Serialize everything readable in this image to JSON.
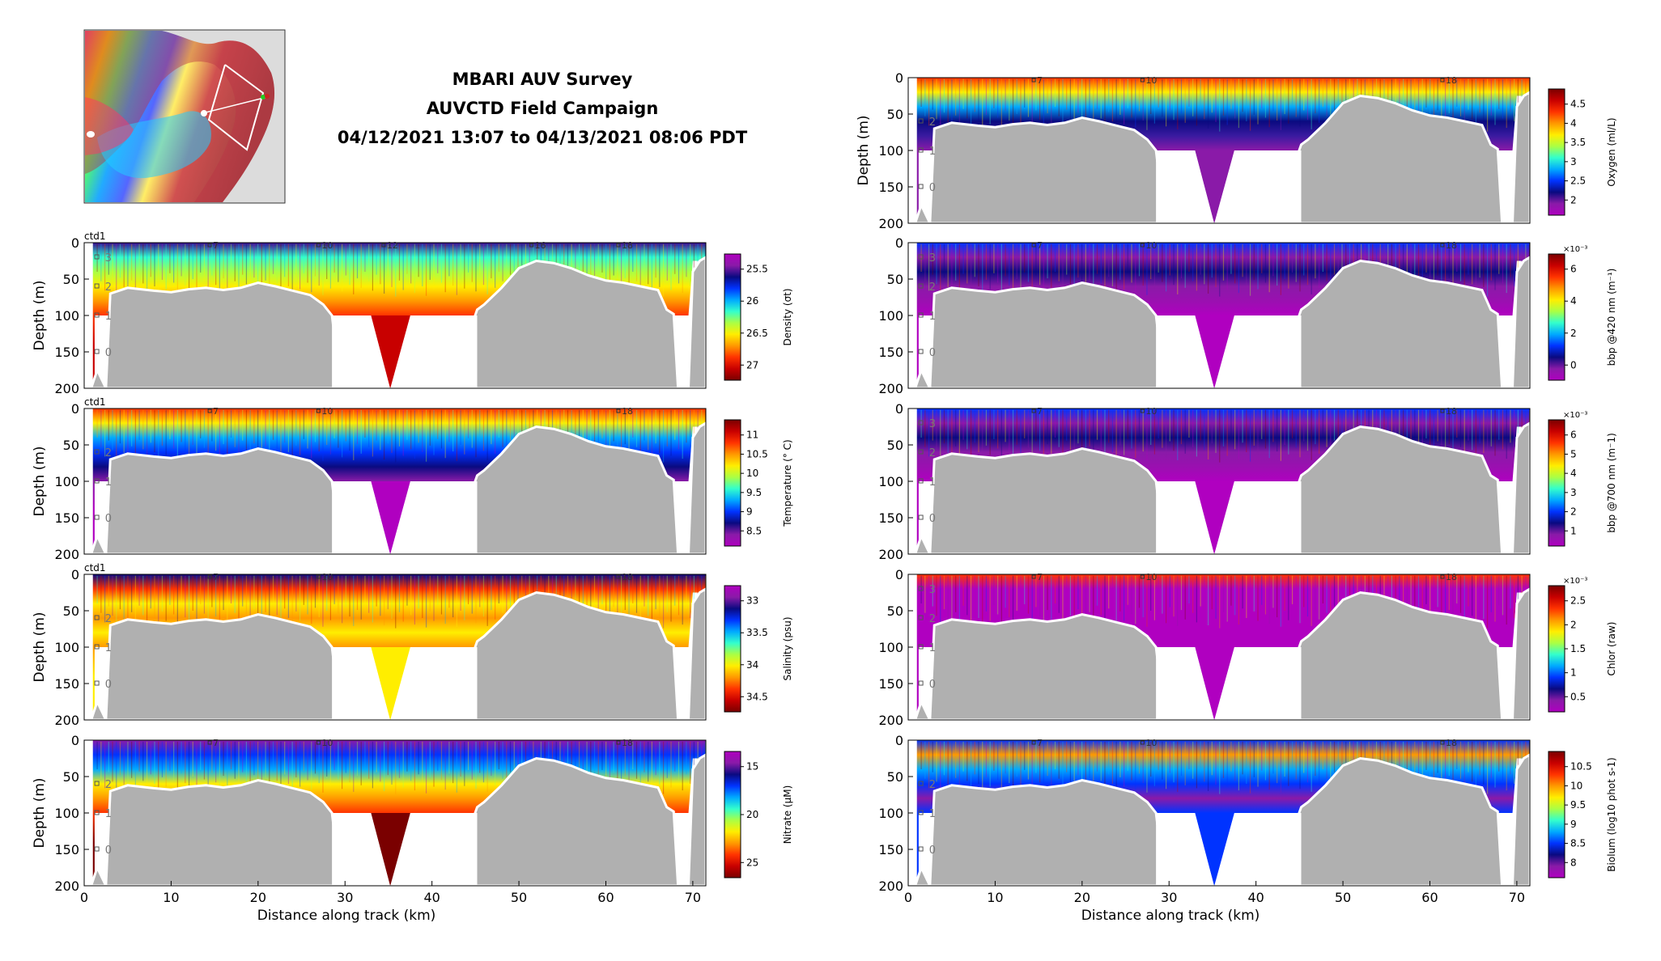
{
  "header": {
    "title_lines": [
      "MBARI AUV Survey",
      "AUVCTD Field Campaign",
      "04/12/2021 13:07 to 04/13/2021 08:06 PDT"
    ]
  },
  "colors": {
    "bathymetry": "#b0b0b0",
    "background": "#ffffff",
    "colormap": [
      "#7a0000",
      "#c80000",
      "#ff3300",
      "#ff9900",
      "#ffee00",
      "#aaff44",
      "#33ffcc",
      "#00aaff",
      "#0033ff",
      "#0a0a80",
      "#8a1aa8",
      "#b000c0"
    ]
  },
  "chart_data": [
    {
      "id": "density",
      "type": "heatmap",
      "column": "left",
      "ylabel": "Depth (m)",
      "xlabel": "",
      "ylim": [
        200,
        0
      ],
      "xlim": [
        0,
        71.5
      ],
      "yticks": [
        0,
        50,
        100,
        150,
        200
      ],
      "xticks": [],
      "colorbar": {
        "label": "Density (σt)",
        "ticks": [
          "25.5",
          "26",
          "26.5",
          "27"
        ],
        "reversed": true
      },
      "top_label": "ctd1",
      "station_labels": [
        "3",
        "2",
        "1",
        "0"
      ],
      "track_labels": [
        "7",
        "10",
        "12",
        "16",
        "18"
      ],
      "palette": "density"
    },
    {
      "id": "temperature",
      "type": "heatmap",
      "column": "left",
      "ylabel": "Depth (m)",
      "xlabel": "",
      "ylim": [
        200,
        0
      ],
      "xlim": [
        0,
        71.5
      ],
      "yticks": [
        0,
        50,
        100,
        150,
        200
      ],
      "xticks": [],
      "colorbar": {
        "label": "Temperature (° C)",
        "ticks": [
          "11",
          "10.5",
          "10",
          "9.5",
          "9",
          "8.5"
        ],
        "reversed": false
      },
      "top_label": "ctd1",
      "station_labels": [
        "2",
        "1",
        "0"
      ],
      "track_labels": [
        "7",
        "10",
        "18"
      ],
      "palette": "temperature"
    },
    {
      "id": "salinity",
      "type": "heatmap",
      "column": "left",
      "ylabel": "Depth (m)",
      "xlabel": "",
      "ylim": [
        200,
        0
      ],
      "xlim": [
        0,
        71.5
      ],
      "yticks": [
        0,
        50,
        100,
        150,
        200
      ],
      "xticks": [],
      "colorbar": {
        "label": "Salinity (psu)",
        "ticks": [
          "33",
          "33.5",
          "34",
          "34.5"
        ],
        "reversed": true
      },
      "top_label": "ctd1",
      "station_labels": [
        "2",
        "1",
        "0"
      ],
      "track_labels": [
        "7",
        "10",
        "18"
      ],
      "palette": "salinity"
    },
    {
      "id": "nitrate",
      "type": "heatmap",
      "column": "left",
      "ylabel": "Depth (m)",
      "xlabel": "Distance along track (km)",
      "ylim": [
        200,
        0
      ],
      "xlim": [
        0,
        71.5
      ],
      "yticks": [
        0,
        50,
        100,
        150,
        200
      ],
      "xticks": [
        0,
        10,
        20,
        30,
        40,
        50,
        60,
        70
      ],
      "colorbar": {
        "label": "Nitrate (μM)",
        "ticks": [
          "15",
          "20",
          "25"
        ],
        "reversed": true
      },
      "top_label": "",
      "station_labels": [
        "2",
        "1",
        "0"
      ],
      "track_labels": [
        "7",
        "10",
        "18"
      ],
      "palette": "nitrate"
    },
    {
      "id": "oxygen",
      "type": "heatmap",
      "column": "right",
      "ylabel": "Depth (m)",
      "xlabel": "",
      "ylim": [
        200,
        0
      ],
      "xlim": [
        0,
        71.5
      ],
      "yticks": [
        0,
        50,
        100,
        150,
        200
      ],
      "xticks": [],
      "colorbar": {
        "label": "Oxygen (ml/L)",
        "ticks": [
          "4.5",
          "4",
          "3.5",
          "3",
          "2.5",
          "2"
        ],
        "reversed": false
      },
      "top_label": "",
      "station_labels": [
        "2",
        "1",
        "0"
      ],
      "track_labels": [
        "7",
        "10",
        "18"
      ],
      "palette": "oxygen"
    },
    {
      "id": "bbp420",
      "type": "heatmap",
      "column": "right",
      "ylabel": "",
      "xlabel": "",
      "ylim": [
        200,
        0
      ],
      "xlim": [
        0,
        71.5
      ],
      "yticks": [
        0,
        50,
        100,
        150,
        200
      ],
      "xticks": [],
      "colorbar": {
        "label": "bbp @420 nm (m⁻¹)",
        "ticks": [
          "6",
          "4",
          "2",
          "0"
        ],
        "reversed": false,
        "exponent": "×10⁻³"
      },
      "top_label": "",
      "station_labels": [
        "3",
        "2",
        "1",
        "0"
      ],
      "track_labels": [
        "7",
        "10",
        "18"
      ],
      "palette": "bbp420"
    },
    {
      "id": "bbp700",
      "type": "heatmap",
      "column": "right",
      "ylabel": "",
      "xlabel": "",
      "ylim": [
        200,
        0
      ],
      "xlim": [
        0,
        71.5
      ],
      "yticks": [
        0,
        50,
        100,
        150,
        200
      ],
      "xticks": [],
      "colorbar": {
        "label": "bbp @700 nm (m⁻1)",
        "ticks": [
          "6",
          "5",
          "4",
          "3",
          "2",
          "1"
        ],
        "reversed": false,
        "exponent": "×10⁻³"
      },
      "top_label": "",
      "station_labels": [
        "3",
        "2",
        "1",
        "0"
      ],
      "track_labels": [
        "7",
        "10",
        "18"
      ],
      "palette": "bbp700"
    },
    {
      "id": "chlor",
      "type": "heatmap",
      "column": "right",
      "ylabel": "",
      "xlabel": "",
      "ylim": [
        200,
        0
      ],
      "xlim": [
        0,
        71.5
      ],
      "yticks": [
        0,
        50,
        100,
        150,
        200
      ],
      "xticks": [],
      "colorbar": {
        "label": "Chlor (raw)",
        "ticks": [
          "2.5",
          "2",
          "1.5",
          "1",
          "0.5"
        ],
        "reversed": false,
        "exponent": "×10⁻³"
      },
      "top_label": "",
      "station_labels": [
        "3",
        "2",
        "1",
        "0"
      ],
      "track_labels": [
        "7",
        "10",
        "18"
      ],
      "palette": "chlor"
    },
    {
      "id": "biolum",
      "type": "heatmap",
      "column": "right",
      "ylabel": "",
      "xlabel": "Distance along track (km)",
      "ylim": [
        200,
        0
      ],
      "xlim": [
        0,
        71.5
      ],
      "yticks": [
        0,
        50,
        100,
        150,
        200
      ],
      "xticks": [
        0,
        10,
        20,
        30,
        40,
        50,
        60,
        70
      ],
      "colorbar": {
        "label": "Biolum (log10 phot s-1)",
        "ticks": [
          "10.5",
          "10",
          "9.5",
          "9",
          "8.5",
          "8"
        ],
        "reversed": false
      },
      "top_label": "",
      "station_labels": [
        "2",
        "1",
        "0"
      ],
      "track_labels": [
        "7",
        "10",
        "18"
      ],
      "palette": "biolum"
    }
  ],
  "bathymetry_profile": {
    "x": [
      0.8,
      1.5,
      2.5,
      3,
      5,
      8,
      10,
      12,
      14,
      16,
      18,
      20,
      22,
      24,
      26,
      27.5,
      28.5,
      29.5,
      32,
      34,
      35.2,
      36.5,
      38,
      42,
      45.2,
      46,
      48,
      50,
      52,
      54,
      56,
      58,
      60,
      62,
      64,
      66,
      67,
      67.8,
      68.3,
      69.5,
      70,
      70.8,
      71.5
    ],
    "depth": [
      200,
      175,
      200,
      70,
      62,
      66,
      68,
      64,
      62,
      65,
      62,
      55,
      60,
      66,
      72,
      85,
      100,
      200,
      200,
      200,
      200,
      200,
      200,
      200,
      92,
      85,
      62,
      35,
      25,
      28,
      35,
      45,
      52,
      55,
      60,
      65,
      92,
      98,
      200,
      200,
      40,
      25,
      20
    ]
  }
}
